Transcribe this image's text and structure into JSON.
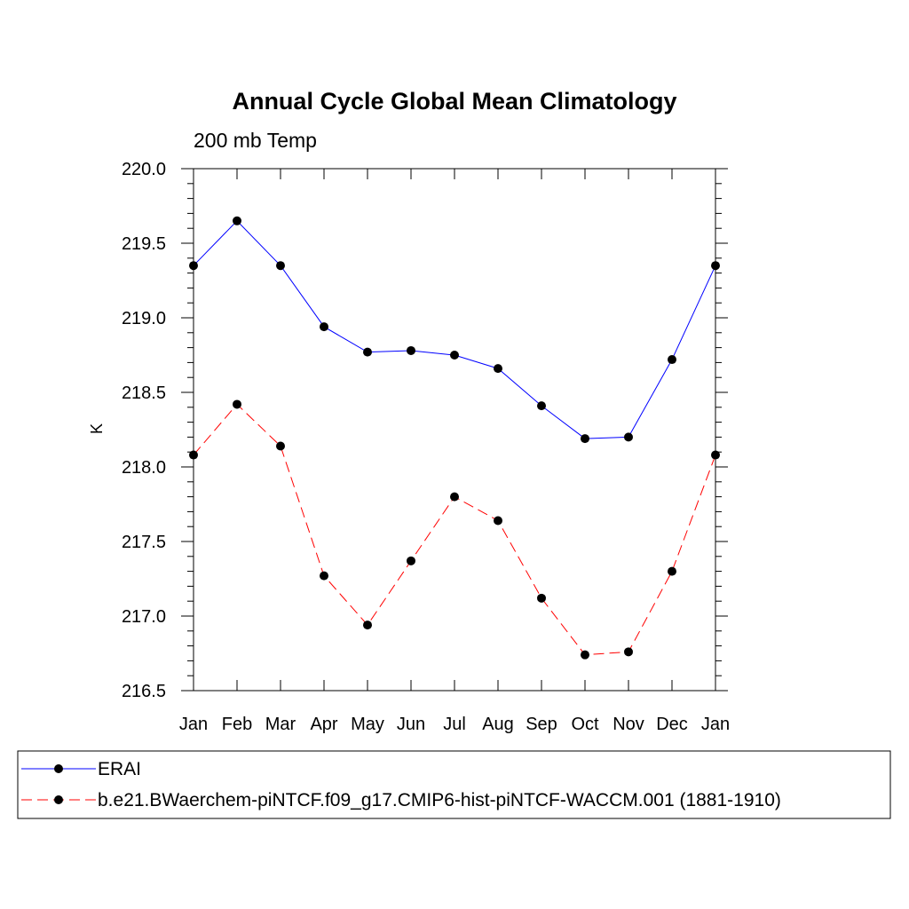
{
  "chart_data": {
    "type": "line",
    "title": "Annual Cycle Global Mean Climatology",
    "subtitle": "200 mb Temp",
    "ylabel": "K",
    "xlabel": "",
    "categories": [
      "Jan",
      "Feb",
      "Mar",
      "Apr",
      "May",
      "Jun",
      "Jul",
      "Aug",
      "Sep",
      "Oct",
      "Nov",
      "Dec",
      "Jan"
    ],
    "ylim": [
      216.5,
      220.0
    ],
    "yticks": [
      "216.5",
      "217.0",
      "217.5",
      "218.0",
      "218.5",
      "219.0",
      "219.5",
      "220.0"
    ],
    "grid": false,
    "legend_position": "bottom",
    "series": [
      {
        "name": "ERAI",
        "color": "#0000ff",
        "style": "solid",
        "values": [
          219.35,
          219.65,
          219.35,
          218.94,
          218.77,
          218.78,
          218.75,
          218.66,
          218.41,
          218.19,
          218.2,
          218.72,
          219.35
        ]
      },
      {
        "name": "b.e21.BWaerchem-piNTCF.f09_g17.CMIP6-hist-piNTCF-WACCM.001 (1881-1910)",
        "color": "#ff0000",
        "style": "dashed",
        "values": [
          218.08,
          218.42,
          218.14,
          217.27,
          216.94,
          217.37,
          217.8,
          217.64,
          217.12,
          216.74,
          216.76,
          217.3,
          218.08
        ]
      }
    ]
  }
}
